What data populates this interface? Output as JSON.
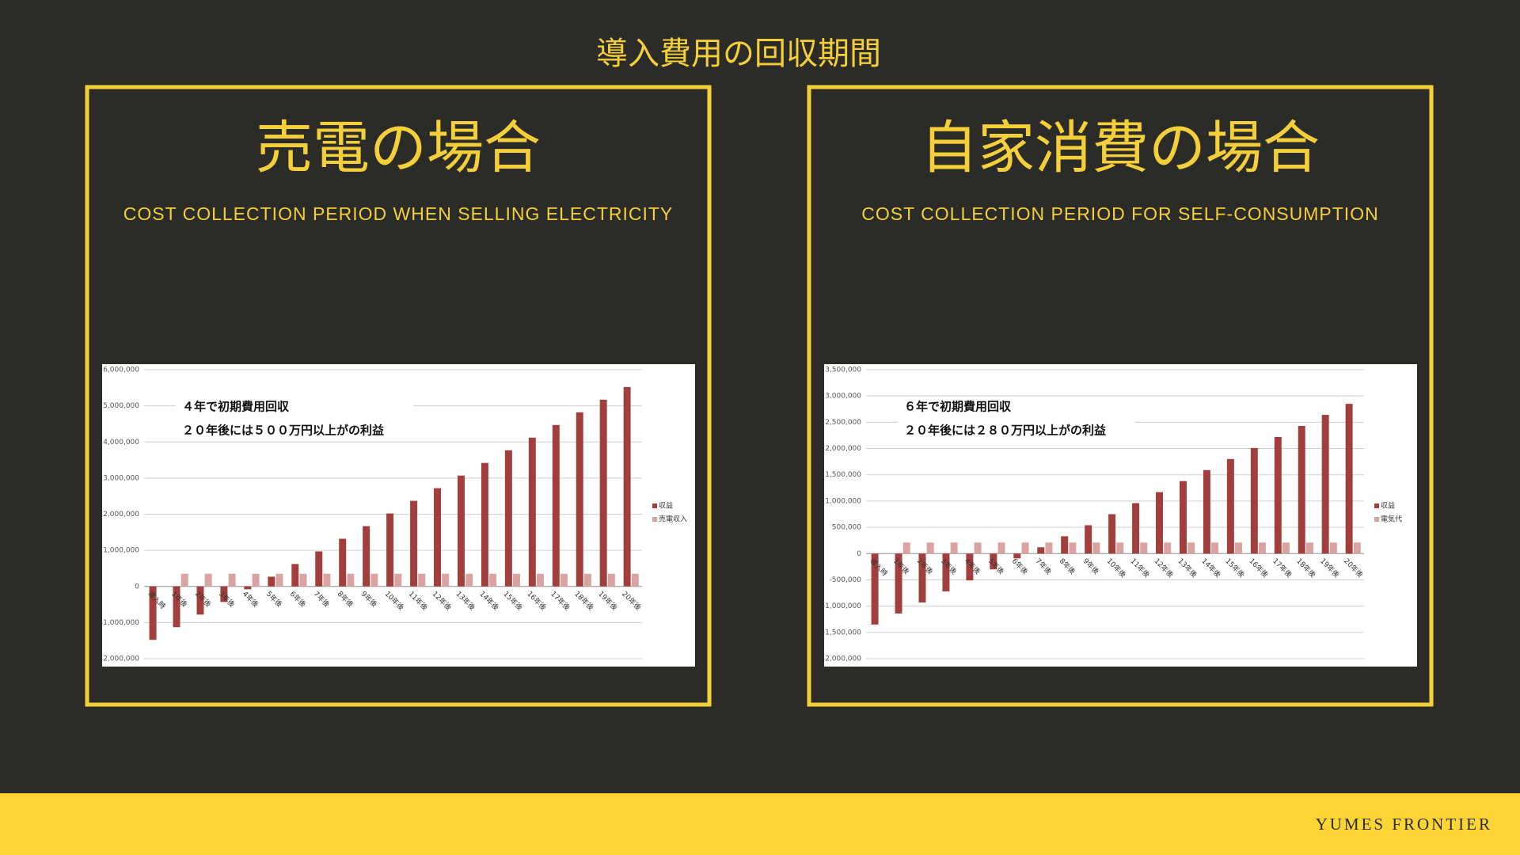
{
  "title": "導入費用の回収期間",
  "footer": "YUMES FRONTIER",
  "chart_data": [
    {
      "type": "bar",
      "title": "売電の場合",
      "subtitle": "COST COLLECTION PERIOD WHEN SELLING ELECTRICITY",
      "annotations": [
        "４年で初期費用回収",
        "２０年後には５００万円以上がの利益"
      ],
      "categories": [
        "導入時",
        "1年後",
        "2年後",
        "3年後",
        "4年後",
        "5年後",
        "6年後",
        "7年後",
        "8年後",
        "9年後",
        "10年後",
        "11年後",
        "12年後",
        "13年後",
        "14年後",
        "15年後",
        "16年後",
        "17年後",
        "18年後",
        "19年後",
        "20年後"
      ],
      "series": [
        {
          "name": "収益",
          "color": "#a23f3d",
          "values": [
            -1480000,
            -1130000,
            -780000,
            -430000,
            -80000,
            270000,
            620000,
            970000,
            1320000,
            1670000,
            2020000,
            2370000,
            2720000,
            3070000,
            3420000,
            3770000,
            4120000,
            4470000,
            4820000,
            5170000,
            5520000
          ]
        },
        {
          "name": "売電収入",
          "color": "#d8a3a1",
          "values": [
            0,
            350000,
            350000,
            350000,
            350000,
            350000,
            350000,
            350000,
            350000,
            350000,
            350000,
            350000,
            350000,
            350000,
            350000,
            350000,
            350000,
            350000,
            350000,
            350000,
            350000
          ]
        }
      ],
      "ylim": [
        -2000000,
        6000000
      ],
      "yticks": [
        {
          "value": -2000000,
          "label": "-2,000,000"
        },
        {
          "value": -1000000,
          "label": "-1,000,000"
        },
        0,
        {
          "value": 1000000,
          "label": "1,000,000"
        },
        {
          "value": 2000000,
          "label": "2,000,000"
        },
        {
          "value": 3000000,
          "label": "3,000,000"
        },
        {
          "value": 4000000,
          "label": "4,000,000"
        },
        {
          "value": 5000000,
          "label": "5,000,000"
        },
        {
          "value": 6000000,
          "label": "6,000,000"
        }
      ],
      "grid": true,
      "legend": "right"
    },
    {
      "type": "bar",
      "title": "自家消費の場合",
      "subtitle": "COST COLLECTION PERIOD FOR SELF-CONSUMPTION",
      "annotations": [
        "６年で初期費用回収",
        "２０年後には２８０万円以上がの利益"
      ],
      "categories": [
        "導入時",
        "1年後",
        "2年後",
        "3年後",
        "4年後",
        "5年後",
        "6年後",
        "7年後",
        "8年後",
        "9年後",
        "10年後",
        "11年後",
        "12年後",
        "13年後",
        "14年後",
        "15年後",
        "16年後",
        "17年後",
        "18年後",
        "19年後",
        "20年後"
      ],
      "series": [
        {
          "name": "収益",
          "color": "#a23f3d",
          "values": [
            -1350000,
            -1140000,
            -930000,
            -720000,
            -510000,
            -300000,
            -90000,
            120000,
            330000,
            540000,
            750000,
            960000,
            1170000,
            1380000,
            1590000,
            1800000,
            2010000,
            2220000,
            2430000,
            2640000,
            2850000
          ]
        },
        {
          "name": "電気代",
          "color": "#d8a3a1",
          "values": [
            0,
            210000,
            210000,
            210000,
            210000,
            210000,
            210000,
            210000,
            210000,
            210000,
            210000,
            210000,
            210000,
            210000,
            210000,
            210000,
            210000,
            210000,
            210000,
            210000,
            210000
          ]
        }
      ],
      "ylim": [
        -2000000,
        3500000
      ],
      "yticks": [
        {
          "value": -2000000,
          "label": "-2,000,000"
        },
        {
          "value": -1500000,
          "label": "-1,500,000"
        },
        {
          "value": -1000000,
          "label": "-1,000,000"
        },
        {
          "value": -500000,
          "label": "-500,000"
        },
        0,
        {
          "value": 500000,
          "label": "500,000"
        },
        {
          "value": 1000000,
          "label": "1,000,000"
        },
        {
          "value": 1500000,
          "label": "1,500,000"
        },
        {
          "value": 2000000,
          "label": "2,000,000"
        },
        {
          "value": 2500000,
          "label": "2,500,000"
        },
        {
          "value": 3000000,
          "label": "3,000,000"
        },
        {
          "value": 3500000,
          "label": "3,500,000"
        }
      ],
      "negative_tick_color": "#c0392b",
      "grid": true,
      "legend": "right"
    }
  ]
}
